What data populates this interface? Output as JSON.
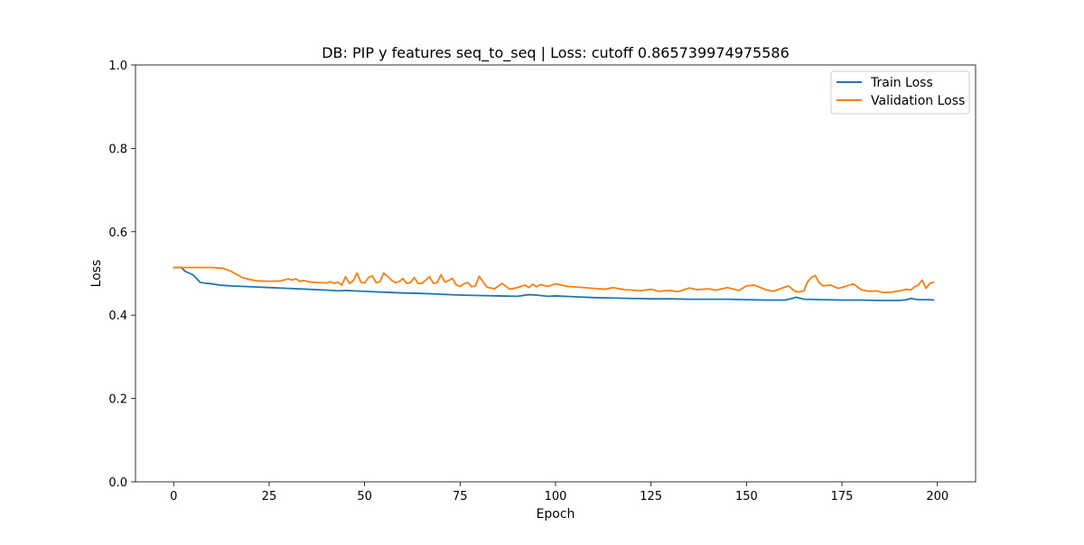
{
  "chart_data": {
    "type": "line",
    "title": "DB: PIP y features seq_to_seq | Loss: cutoff 0.865739974975586",
    "xlabel": "Epoch",
    "ylabel": "Loss",
    "xlim": [
      -10,
      210
    ],
    "ylim": [
      0,
      1
    ],
    "xticks": [
      0,
      25,
      50,
      75,
      100,
      125,
      150,
      175,
      200
    ],
    "yticks": [
      0.0,
      0.2,
      0.4,
      0.6,
      0.8,
      1.0
    ],
    "ytick_labels": [
      "0.0",
      "0.2",
      "0.4",
      "0.6",
      "0.8",
      "1.0"
    ],
    "grid": false,
    "legend_position": "top-right",
    "series": [
      {
        "name": "Train Loss",
        "color": "#1f77b4",
        "x": [
          0,
          2,
          3,
          5,
          7,
          10,
          12,
          15,
          20,
          25,
          30,
          35,
          40,
          43,
          45,
          50,
          55,
          60,
          65,
          70,
          75,
          80,
          85,
          90,
          93,
          95,
          98,
          100,
          105,
          110,
          115,
          120,
          125,
          130,
          135,
          140,
          145,
          150,
          155,
          160,
          162,
          163,
          165,
          170,
          175,
          180,
          185,
          190,
          192,
          193,
          195,
          198,
          199
        ],
        "y": [
          0.514,
          0.514,
          0.505,
          0.497,
          0.478,
          0.475,
          0.472,
          0.47,
          0.468,
          0.466,
          0.464,
          0.462,
          0.46,
          0.458,
          0.459,
          0.457,
          0.455,
          0.453,
          0.452,
          0.45,
          0.448,
          0.447,
          0.446,
          0.445,
          0.449,
          0.448,
          0.445,
          0.446,
          0.444,
          0.442,
          0.441,
          0.44,
          0.439,
          0.439,
          0.438,
          0.438,
          0.438,
          0.437,
          0.436,
          0.436,
          0.44,
          0.443,
          0.438,
          0.437,
          0.436,
          0.436,
          0.435,
          0.435,
          0.437,
          0.44,
          0.437,
          0.437,
          0.436
        ]
      },
      {
        "name": "Validation Loss",
        "color": "#ff7f0e",
        "x": [
          0,
          5,
          10,
          13,
          15,
          18,
          20,
          22,
          25,
          28,
          30,
          31,
          32,
          33,
          34,
          36,
          38,
          40,
          41,
          42,
          43,
          44,
          45,
          46,
          47,
          48,
          49,
          50,
          51,
          52,
          53,
          54,
          55,
          56,
          57,
          58,
          59,
          60,
          61,
          62,
          63,
          64,
          65,
          66,
          67,
          68,
          69,
          70,
          71,
          72,
          73,
          74,
          75,
          76,
          77,
          78,
          79,
          80,
          82,
          84,
          86,
          88,
          90,
          92,
          93,
          94,
          95,
          96,
          98,
          100,
          103,
          106,
          110,
          113,
          115,
          118,
          120,
          122,
          125,
          127,
          130,
          132,
          135,
          137,
          140,
          142,
          145,
          148,
          150,
          152,
          155,
          157,
          160,
          161,
          162,
          163,
          164,
          165,
          166,
          167,
          168,
          169,
          170,
          172,
          174,
          176,
          178,
          180,
          182,
          184,
          186,
          188,
          190,
          192,
          193,
          194,
          195,
          196,
          197,
          198,
          199
        ],
        "y": [
          0.514,
          0.514,
          0.514,
          0.512,
          0.505,
          0.49,
          0.485,
          0.482,
          0.481,
          0.482,
          0.487,
          0.484,
          0.487,
          0.481,
          0.483,
          0.479,
          0.478,
          0.477,
          0.48,
          0.476,
          0.479,
          0.472,
          0.492,
          0.476,
          0.482,
          0.501,
          0.479,
          0.477,
          0.49,
          0.494,
          0.478,
          0.48,
          0.501,
          0.493,
          0.484,
          0.478,
          0.48,
          0.488,
          0.476,
          0.478,
          0.49,
          0.476,
          0.476,
          0.484,
          0.492,
          0.476,
          0.478,
          0.497,
          0.479,
          0.483,
          0.488,
          0.472,
          0.469,
          0.475,
          0.478,
          0.468,
          0.47,
          0.493,
          0.467,
          0.463,
          0.476,
          0.462,
          0.466,
          0.472,
          0.466,
          0.474,
          0.468,
          0.473,
          0.469,
          0.475,
          0.469,
          0.467,
          0.464,
          0.462,
          0.466,
          0.461,
          0.46,
          0.458,
          0.462,
          0.457,
          0.459,
          0.456,
          0.465,
          0.461,
          0.463,
          0.46,
          0.466,
          0.459,
          0.47,
          0.472,
          0.461,
          0.457,
          0.467,
          0.47,
          0.462,
          0.456,
          0.456,
          0.458,
          0.48,
          0.49,
          0.495,
          0.478,
          0.47,
          0.472,
          0.464,
          0.469,
          0.475,
          0.461,
          0.457,
          0.458,
          0.454,
          0.455,
          0.458,
          0.462,
          0.46,
          0.468,
          0.472,
          0.484,
          0.464,
          0.476,
          0.479
        ]
      }
    ]
  }
}
